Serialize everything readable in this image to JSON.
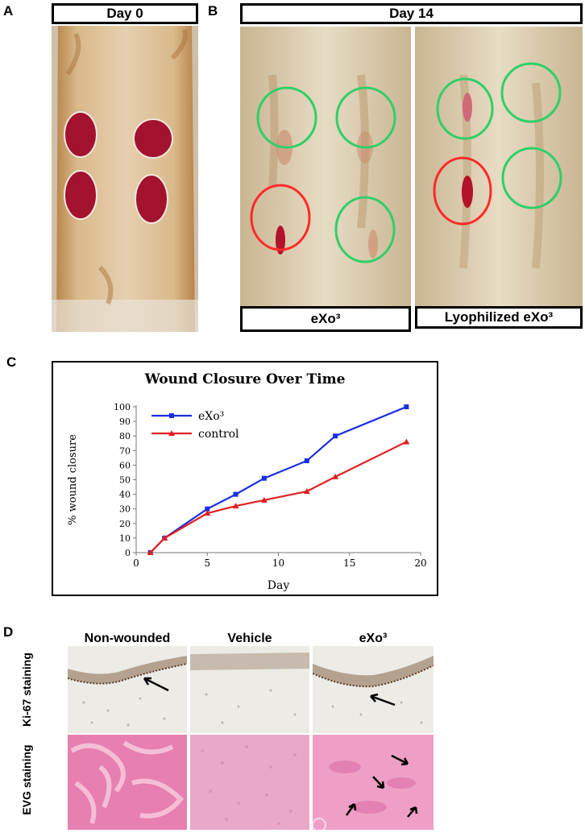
{
  "panels": {
    "a": {
      "letter": "A",
      "label": "Day 0"
    },
    "b": {
      "letter": "B",
      "label": "Day 14",
      "left_caption": "eXo³",
      "right_caption": "Lyophilized eXo³"
    },
    "c": {
      "letter": "C"
    },
    "d": {
      "letter": "D",
      "columns": [
        "Non-wounded",
        "Vehicle",
        "eXo³"
      ],
      "rows": [
        "Ki-67 staining",
        "EVG staining"
      ]
    }
  },
  "colors": {
    "exo3": "#1a2ee0",
    "control": "#e02020",
    "circle_green": "#2fcf6a",
    "circle_red": "#ff2a2a",
    "fur": "#d9c49a",
    "wound": "#a3122e",
    "ki67_bg": "#ecebe6",
    "evg_bg": "#e88fb8"
  },
  "chart_data": {
    "type": "line",
    "title": "Wound Closure Over Time",
    "xlabel": "Day",
    "ylabel": "% wound closure",
    "xlim": [
      0,
      20
    ],
    "ylim": [
      0,
      100
    ],
    "xticks": [
      0,
      5,
      10,
      15,
      20
    ],
    "yticks": [
      0,
      10,
      20,
      30,
      40,
      50,
      60,
      70,
      80,
      90,
      100
    ],
    "legend_position": "top-left",
    "series": [
      {
        "name": "eXo³",
        "color": "#1a2ee0",
        "marker": "square",
        "x": [
          1,
          2,
          5,
          7,
          9,
          12,
          14,
          19
        ],
        "y": [
          0,
          10,
          30,
          40,
          51,
          63,
          80,
          100
        ]
      },
      {
        "name": "control",
        "color": "#e02020",
        "marker": "triangle",
        "x": [
          1,
          2,
          5,
          7,
          9,
          12,
          14,
          19
        ],
        "y": [
          0,
          10,
          27,
          32,
          36,
          42,
          52,
          76
        ]
      }
    ]
  }
}
